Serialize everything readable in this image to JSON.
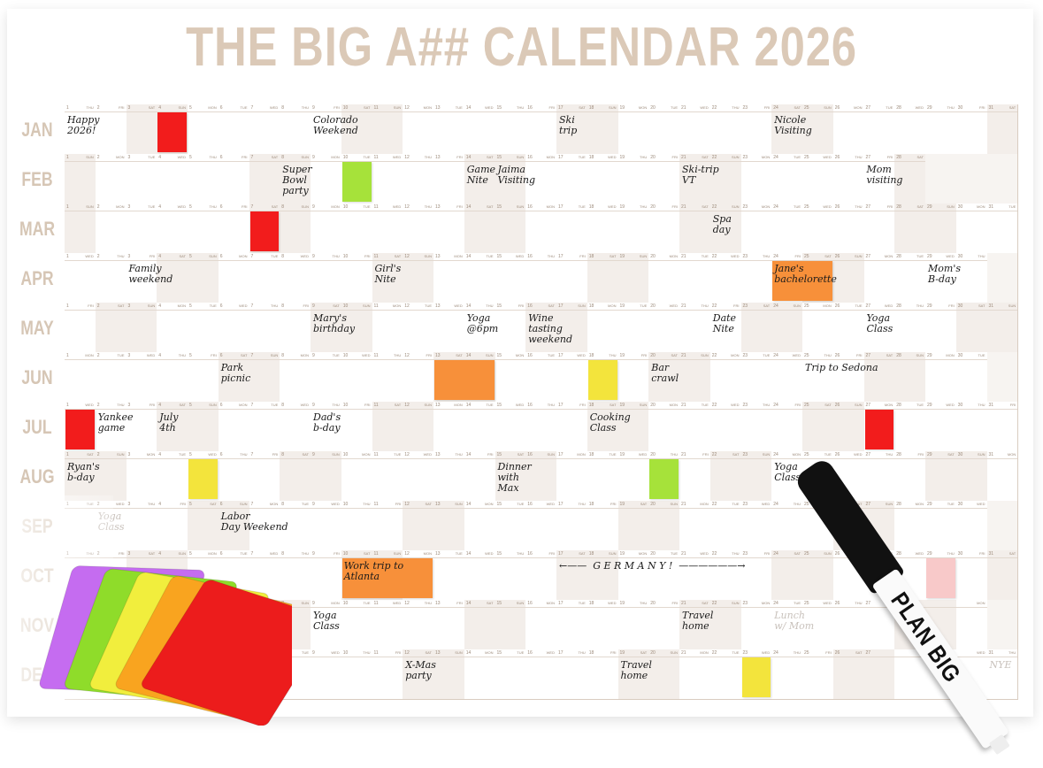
{
  "title": "THE BIG A## CALENDAR 2026",
  "year": 2026,
  "months": [
    "JAN",
    "FEB",
    "MAR",
    "APR",
    "MAY",
    "JUN",
    "JUL",
    "AUG",
    "SEP",
    "OCT",
    "NOV",
    "DEC"
  ],
  "weekdays": [
    "SUN",
    "MON",
    "TUE",
    "WED",
    "THU",
    "FRI",
    "SAT"
  ],
  "colors": {
    "title": "#dbc9b7",
    "red": "#f21c1c",
    "green": "#a6e23a",
    "yellow": "#f3e43c",
    "orange": "#f7903a",
    "pink": "#f8c9c9"
  },
  "stickies": [
    {
      "month": 1,
      "day": 4,
      "span": 1,
      "color": "red"
    },
    {
      "month": 2,
      "day": 10,
      "span": 1,
      "color": "green"
    },
    {
      "month": 3,
      "day": 7,
      "span": 1,
      "color": "red"
    },
    {
      "month": 4,
      "day": 24,
      "span": 2,
      "color": "orange"
    },
    {
      "month": 6,
      "day": 13,
      "span": 2,
      "color": "orange"
    },
    {
      "month": 6,
      "day": 18,
      "span": 1,
      "color": "yellow"
    },
    {
      "month": 7,
      "day": 1,
      "span": 1,
      "color": "red"
    },
    {
      "month": 7,
      "day": 27,
      "span": 1,
      "color": "red"
    },
    {
      "month": 8,
      "day": 5,
      "span": 1,
      "color": "yellow"
    },
    {
      "month": 8,
      "day": 20,
      "span": 1,
      "color": "green"
    },
    {
      "month": 10,
      "day": 10,
      "span": 3,
      "color": "orange"
    },
    {
      "month": 10,
      "day": 29,
      "span": 1,
      "color": "pink"
    },
    {
      "month": 12,
      "day": 23,
      "span": 1,
      "color": "yellow"
    }
  ],
  "notes": [
    {
      "month": 1,
      "day": 1,
      "text": "Happy\n2026!"
    },
    {
      "month": 1,
      "day": 9,
      "text": "Colorado\nWeekend"
    },
    {
      "month": 1,
      "day": 17,
      "text": "Ski\ntrip"
    },
    {
      "month": 1,
      "day": 24,
      "text": "Nicole\nVisiting"
    },
    {
      "month": 2,
      "day": 8,
      "text": "Super\nBowl\nparty"
    },
    {
      "month": 2,
      "day": 14,
      "text": "Game\nNite"
    },
    {
      "month": 2,
      "day": 15,
      "text": "Jaima\nVisiting"
    },
    {
      "month": 2,
      "day": 21,
      "text": "Ski-trip\nVT"
    },
    {
      "month": 2,
      "day": 27,
      "text": "Mom\nvisiting"
    },
    {
      "month": 3,
      "day": 22,
      "text": "Spa\nday"
    },
    {
      "month": 4,
      "day": 3,
      "text": "Family\nweekend"
    },
    {
      "month": 4,
      "day": 11,
      "text": "Girl's\nNite"
    },
    {
      "month": 4,
      "day": 24,
      "text": "Jane's\nbachelorette"
    },
    {
      "month": 4,
      "day": 29,
      "text": "Mom's\nB-day"
    },
    {
      "month": 5,
      "day": 9,
      "text": "Mary's\nbirthday"
    },
    {
      "month": 5,
      "day": 14,
      "text": "Yoga\n@6pm"
    },
    {
      "month": 5,
      "day": 16,
      "text": "Wine\ntasting\nweekend"
    },
    {
      "month": 5,
      "day": 22,
      "text": "Date\nNite"
    },
    {
      "month": 5,
      "day": 27,
      "text": "Yoga\nClass"
    },
    {
      "month": 6,
      "day": 6,
      "text": "Park\npicnic"
    },
    {
      "month": 6,
      "day": 20,
      "text": "Bar\ncrawl"
    },
    {
      "month": 6,
      "day": 25,
      "text": "Trip to Sedona"
    },
    {
      "month": 7,
      "day": 2,
      "text": "Yankee\ngame"
    },
    {
      "month": 7,
      "day": 4,
      "text": "July\n4th"
    },
    {
      "month": 7,
      "day": 9,
      "text": "Dad's\nb-day"
    },
    {
      "month": 7,
      "day": 18,
      "text": "Cooking\nClass"
    },
    {
      "month": 8,
      "day": 1,
      "text": "Ryan's\nb-day"
    },
    {
      "month": 8,
      "day": 15,
      "text": "Dinner\nwith\nMax"
    },
    {
      "month": 8,
      "day": 24,
      "text": "Yoga\nClass"
    },
    {
      "month": 9,
      "day": 2,
      "text": "Yoga\nClass",
      "faded": true
    },
    {
      "month": 9,
      "day": 6,
      "text": "Labor\nDay Weekend"
    },
    {
      "month": 10,
      "day": 10,
      "text": "Work trip to\nAtlanta"
    },
    {
      "month": 10,
      "day": 17,
      "text": "←——  G E R M A N Y !  ——————→"
    },
    {
      "month": 11,
      "day": 9,
      "text": "Yoga\nClass"
    },
    {
      "month": 11,
      "day": 21,
      "text": "Travel\nhome"
    },
    {
      "month": 11,
      "day": 24,
      "text": "Lunch\nw/ Mom",
      "faded": true
    },
    {
      "month": 12,
      "day": 12,
      "text": "X-Mas\nparty"
    },
    {
      "month": 12,
      "day": 19,
      "text": "Travel\nhome"
    },
    {
      "month": 12,
      "day": 31,
      "text": "NYE",
      "faded": true
    }
  ],
  "pen": {
    "brand": "PLAN BIG"
  },
  "sticky_stack_colors": [
    "#c56cf0",
    "#8fdc2a",
    "#f1ee3d",
    "#f9a41f",
    "#ec1c1c"
  ]
}
